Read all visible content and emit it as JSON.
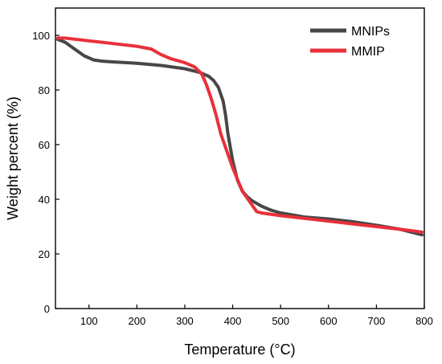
{
  "chart_data": {
    "type": "line",
    "title": "",
    "xlabel": "Temperature (°C)",
    "ylabel": "Weight percent (%)",
    "xlim": [
      30,
      800
    ],
    "ylim": [
      0,
      110
    ],
    "x_ticks": [
      100,
      200,
      300,
      400,
      500,
      600,
      700,
      800
    ],
    "y_ticks": [
      0,
      20,
      40,
      60,
      80,
      100
    ],
    "grid": false,
    "legend_position": "top-right",
    "series": [
      {
        "name": "MNIPs",
        "color": "#474747",
        "x": [
          35,
          50,
          70,
          90,
          110,
          130,
          150,
          200,
          250,
          300,
          330,
          350,
          360,
          370,
          380,
          385,
          390,
          400,
          410,
          420,
          430,
          440,
          460,
          480,
          500,
          550,
          600,
          650,
          700,
          750,
          795
        ],
        "y": [
          98.5,
          97.5,
          95,
          92.5,
          91,
          90.5,
          90.3,
          89.8,
          89,
          87.8,
          86.5,
          85,
          83.5,
          81,
          76,
          71,
          64,
          54,
          47,
          43,
          41,
          39.5,
          37.5,
          36,
          35,
          33.5,
          32.8,
          31.8,
          30.5,
          29,
          27
        ]
      },
      {
        "name": "MMIP",
        "color": "#e8303a",
        "x": [
          35,
          50,
          100,
          150,
          200,
          230,
          250,
          270,
          300,
          320,
          335,
          345,
          355,
          365,
          375,
          385,
          400,
          420,
          440,
          450,
          460,
          500,
          550,
          600,
          650,
          700,
          750,
          795
        ],
        "y": [
          99,
          99,
          98,
          97,
          96,
          95,
          93,
          91.5,
          90,
          88.5,
          86,
          82,
          77,
          71,
          64,
          59,
          51.5,
          43,
          38,
          35.5,
          35,
          34,
          33,
          32,
          31,
          30,
          29,
          28
        ]
      }
    ]
  }
}
